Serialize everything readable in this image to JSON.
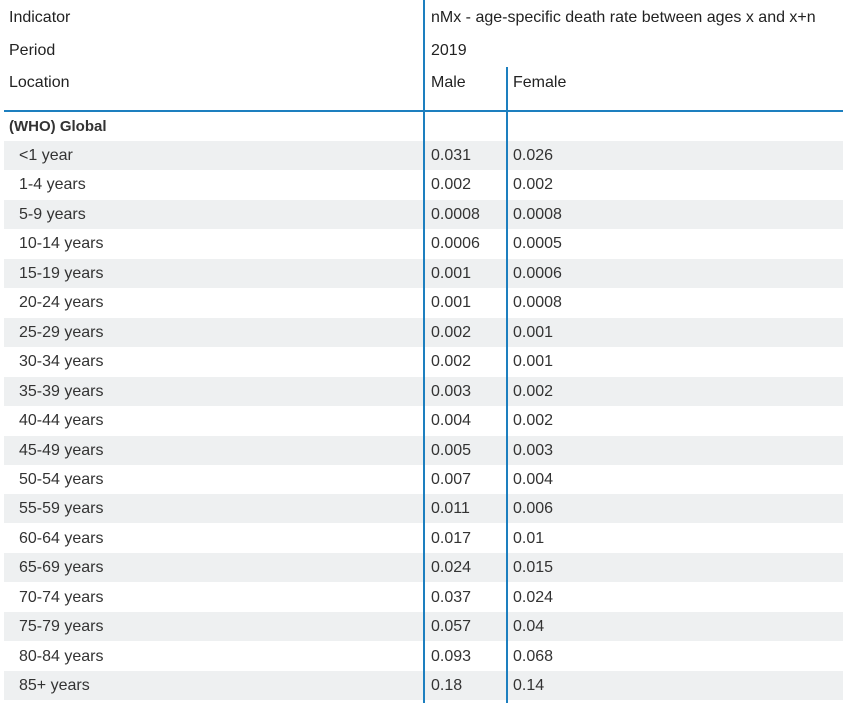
{
  "header": {
    "indicator_label": "Indicator",
    "indicator_value": "nMx - age-specific death rate between ages x and x+n",
    "period_label": "Period",
    "period_value": "2019",
    "location_label": "Location",
    "col_male": "Male",
    "col_female": "Female"
  },
  "group": {
    "title": "(WHO) Global"
  },
  "rows": [
    {
      "age": "<1 year",
      "male": "0.031",
      "female": "0.026"
    },
    {
      "age": "1-4 years",
      "male": "0.002",
      "female": "0.002"
    },
    {
      "age": "5-9 years",
      "male": "0.0008",
      "female": "0.0008"
    },
    {
      "age": "10-14 years",
      "male": "0.0006",
      "female": "0.0005"
    },
    {
      "age": "15-19 years",
      "male": "0.001",
      "female": "0.0006"
    },
    {
      "age": "20-24 years",
      "male": "0.001",
      "female": "0.0008"
    },
    {
      "age": "25-29 years",
      "male": "0.002",
      "female": "0.001"
    },
    {
      "age": "30-34 years",
      "male": "0.002",
      "female": "0.001"
    },
    {
      "age": "35-39 years",
      "male": "0.003",
      "female": "0.002"
    },
    {
      "age": "40-44 years",
      "male": "0.004",
      "female": "0.002"
    },
    {
      "age": "45-49 years",
      "male": "0.005",
      "female": "0.003"
    },
    {
      "age": "50-54 years",
      "male": "0.007",
      "female": "0.004"
    },
    {
      "age": "55-59 years",
      "male": "0.011",
      "female": "0.006"
    },
    {
      "age": "60-64 years",
      "male": "0.017",
      "female": "0.01"
    },
    {
      "age": "65-69 years",
      "male": "0.024",
      "female": "0.015"
    },
    {
      "age": "70-74 years",
      "male": "0.037",
      "female": "0.024"
    },
    {
      "age": "75-79 years",
      "male": "0.057",
      "female": "0.04"
    },
    {
      "age": "80-84 years",
      "male": "0.093",
      "female": "0.068"
    },
    {
      "age": "85+ years",
      "male": "0.18",
      "female": "0.14"
    }
  ]
}
